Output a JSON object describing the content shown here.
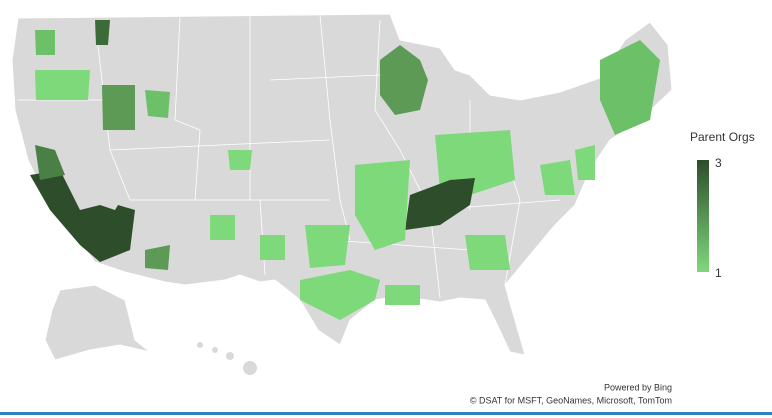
{
  "legend": {
    "title": "Parent Orgs",
    "max": 3,
    "min": 1,
    "color_max": "#2e4d2b",
    "color_min": "#7ed97a"
  },
  "attribution": {
    "powered_by": "Powered by Bing",
    "copyright": "© DSAT for MSFT, GeoNames, Microsoft, TomTom"
  }
}
